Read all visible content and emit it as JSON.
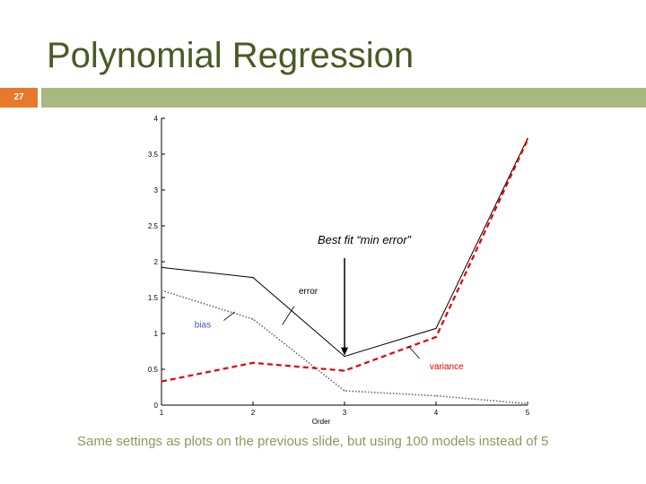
{
  "slide": {
    "title": "Polynomial Regression",
    "number": "27",
    "caption": "Same settings as plots on the previous slide, but using 100 models instead of 5",
    "accent_color": "#e8792a",
    "bar_color": "#a8b880",
    "title_color": "#4a5a23"
  },
  "chart_data": {
    "type": "line",
    "x": [
      1,
      2,
      3,
      4,
      5
    ],
    "xlabel": "Order",
    "ylabel": "",
    "title": "",
    "xlim": [
      1,
      5
    ],
    "ylim": [
      0,
      4
    ],
    "x_ticks": [
      "1",
      "2",
      "3",
      "4",
      "5"
    ],
    "y_ticks": [
      "0",
      "0.5",
      "1",
      "1.5",
      "2",
      "2.5",
      "3",
      "3.5",
      "4"
    ],
    "grid": false,
    "series": [
      {
        "name": "error",
        "values": [
          1.92,
          1.78,
          0.68,
          1.07,
          3.72
        ],
        "color": "#000000",
        "style": "solid"
      },
      {
        "name": "bias",
        "values": [
          1.6,
          1.2,
          0.2,
          0.13,
          0.02
        ],
        "color": "#666666",
        "style": "dotted"
      },
      {
        "name": "variance",
        "values": [
          0.33,
          0.59,
          0.48,
          0.95,
          3.7
        ],
        "color": "#e00000",
        "style": "dashed"
      }
    ],
    "annotations": [
      {
        "text": "Best fit “min error”",
        "x": 3,
        "y": 0.68
      }
    ]
  }
}
